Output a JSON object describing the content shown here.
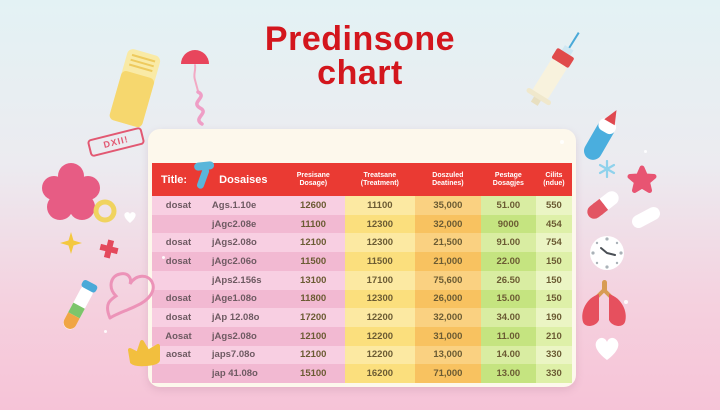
{
  "title": {
    "line1": "Predinsone",
    "line2": "chart",
    "color": "#d3161d"
  },
  "stamp": {
    "text": "DXII!"
  },
  "chart_data": {
    "type": "table",
    "title": "Predinsone chart",
    "columns": [
      {
        "label": "Title:",
        "sub": ""
      },
      {
        "label": "Dosaises",
        "sub": ""
      },
      {
        "label": "Presisane",
        "sub": "Dosage)"
      },
      {
        "label": "Treatsane",
        "sub": "(Treatment)"
      },
      {
        "label": "Doszuled",
        "sub": "Deatines)"
      },
      {
        "label": "Pestage",
        "sub": "Dosagjes"
      },
      {
        "label": "Cilits",
        "sub": "(ndue)"
      }
    ],
    "rows": [
      [
        "dosat",
        "Ags.1.10e",
        "12600",
        "11100",
        "35,000",
        "51.00",
        "550"
      ],
      [
        "",
        "jAgc2.08e",
        "11100",
        "12300",
        "32,000",
        "9000",
        "454"
      ],
      [
        "dosat",
        "jAgs2.08o",
        "12100",
        "12300",
        "21,500",
        "91.00",
        "754"
      ],
      [
        "dosat",
        "jAgc2.06o",
        "11500",
        "11500",
        "21,000",
        "22.00",
        "150"
      ],
      [
        "",
        "jAps2.156s",
        "13100",
        "17100",
        "75,600",
        "26.50",
        "150"
      ],
      [
        "dosat",
        "jAge1.08o",
        "11800",
        "12300",
        "26,000",
        "15.00",
        "150"
      ],
      [
        "dosat",
        "jAp 12.08o",
        "17200",
        "12200",
        "32,000",
        "34.00",
        "190"
      ],
      [
        "Aosat",
        "jAgs2.08o",
        "12100",
        "12200",
        "31,000",
        "11.00",
        "210"
      ],
      [
        "aosat",
        "japs7.08o",
        "12100",
        "12200",
        "13,000",
        "14.00",
        "330"
      ],
      [
        "",
        "jap 41.08o",
        "15100",
        "16200",
        "71,000",
        "13.00",
        "330"
      ]
    ]
  },
  "colors": {
    "header_red": "#ea3a33",
    "title_red": "#d3161d",
    "card_cream": "#fdf8ec",
    "pink_light": "#f8cfe2",
    "pink_dark": "#f2b9d2",
    "yellow_light": "#fce9a2",
    "yellow_dark": "#fbdf7d",
    "orange_light": "#fad181",
    "orange_dark": "#f8c260",
    "green_light": "#d9eda2",
    "green_dark": "#c5e480",
    "lime_light": "#ebf5c4",
    "lime_dark": "#def0a8"
  },
  "decorations": [
    "pill-bottle",
    "dropper",
    "germ-squiggle",
    "dxii-stamp",
    "flower-blob",
    "clamp-tool",
    "yellow-ring",
    "small-heart",
    "sparkle",
    "red-cross",
    "test-tube",
    "heart-cord",
    "crown-star",
    "syringe",
    "medicine-tube",
    "snowflake",
    "star-blob",
    "capsule-pill",
    "white-pill",
    "clock",
    "lungs",
    "white-heart"
  ]
}
